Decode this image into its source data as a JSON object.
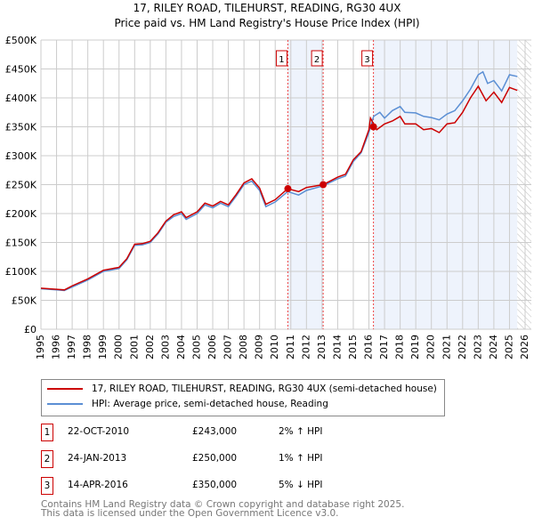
{
  "chart_data": {
    "type": "line",
    "title": "17, RILEY ROAD, TILEHURST, READING, RG30 4UX",
    "subtitle": "Price paid vs. HM Land Registry's House Price Index (HPI)",
    "xlim": [
      1995,
      2026
    ],
    "ylim": [
      0,
      500000
    ],
    "x_ticks": [
      "1995",
      "1996",
      "1997",
      "1998",
      "1999",
      "2000",
      "2001",
      "2002",
      "2003",
      "2004",
      "2005",
      "2006",
      "2007",
      "2008",
      "2009",
      "2010",
      "2011",
      "2012",
      "2013",
      "2014",
      "2015",
      "2016",
      "2017",
      "2018",
      "2019",
      "2020",
      "2021",
      "2022",
      "2023",
      "2024",
      "2025",
      "2026"
    ],
    "y_ticks": [
      "£0",
      "£50K",
      "£100K",
      "£150K",
      "£200K",
      "£250K",
      "£300K",
      "£350K",
      "£400K",
      "£450K",
      "£500K"
    ],
    "grid": true,
    "series": [
      {
        "name": "17, RILEY ROAD, TILEHURST, READING, RG30 4UX (semi-detached house)",
        "color": "#cc0000",
        "x": [
          1995,
          1996,
          1996.5,
          1997,
          1998,
          1999,
          2000,
          2000.5,
          2001,
          2001.5,
          2002,
          2002.5,
          2003,
          2003.5,
          2004,
          2004.3,
          2005,
          2005.5,
          2006,
          2006.5,
          2007,
          2007.5,
          2008,
          2008.5,
          2009,
          2009.4,
          2010,
          2010.8,
          2011.5,
          2012,
          2013.07,
          2014,
          2014.5,
          2015,
          2015.5,
          2016,
          2016.1,
          2016.5,
          2017,
          2017.5,
          2018,
          2018.3,
          2019,
          2019.5,
          2020,
          2020.5,
          2021,
          2021.5,
          2022,
          2022.5,
          2023,
          2023.5,
          2024,
          2024.5,
          2025,
          2025.5
        ],
        "values": [
          71000,
          69000,
          68000,
          75000,
          87000,
          102000,
          107000,
          122000,
          147000,
          148000,
          152000,
          167000,
          187000,
          198000,
          203000,
          193000,
          203000,
          218000,
          213000,
          221000,
          215000,
          233000,
          253000,
          260000,
          244000,
          216000,
          224000,
          243000,
          238000,
          245000,
          250000,
          263000,
          268000,
          293000,
          307000,
          345000,
          365000,
          345000,
          355000,
          360000,
          368000,
          355000,
          355000,
          345000,
          347000,
          340000,
          355000,
          357000,
          375000,
          400000,
          420000,
          395000,
          410000,
          392000,
          418000,
          413000
        ]
      },
      {
        "name": "HPI: Average price, semi-detached house, Reading",
        "color": "#5b8fd4",
        "x": [
          1995,
          1996,
          1996.5,
          1997,
          1998,
          1999,
          2000,
          2000.5,
          2001,
          2001.5,
          2002,
          2002.5,
          2003,
          2003.5,
          2004,
          2004.3,
          2005,
          2005.5,
          2006,
          2006.5,
          2007,
          2007.5,
          2008,
          2008.5,
          2009,
          2009.4,
          2010,
          2010.8,
          2011.5,
          2012,
          2013.07,
          2014,
          2014.5,
          2015,
          2015.5,
          2016,
          2016.3,
          2016.7,
          2017,
          2017.5,
          2018,
          2018.3,
          2019,
          2019.5,
          2020,
          2020.5,
          2021,
          2021.5,
          2022,
          2022.5,
          2023,
          2023.3,
          2023.6,
          2024,
          2024.5,
          2025,
          2025.5
        ],
        "values": [
          70000,
          68000,
          67000,
          73000,
          85000,
          100000,
          105000,
          120000,
          145000,
          146000,
          150000,
          165000,
          185000,
          195000,
          200000,
          190000,
          200000,
          215000,
          210000,
          218000,
          212000,
          230000,
          250000,
          256000,
          240000,
          212000,
          220000,
          238000,
          232000,
          240000,
          248000,
          260000,
          265000,
          290000,
          305000,
          340000,
          368000,
          375000,
          365000,
          378000,
          385000,
          375000,
          374000,
          368000,
          366000,
          362000,
          372000,
          378000,
          395000,
          415000,
          440000,
          445000,
          425000,
          430000,
          412000,
          440000,
          437000
        ]
      }
    ],
    "transactions": [
      {
        "id": "1",
        "date": "22-OCT-2010",
        "x": 2010.81,
        "price": "£243,000",
        "value": 243000,
        "hpi": "2% ↑ HPI"
      },
      {
        "id": "2",
        "date": "24-JAN-2013",
        "x": 2013.07,
        "price": "£250,000",
        "value": 250000,
        "hpi": "1% ↑ HPI"
      },
      {
        "id": "3",
        "date": "14-APR-2016",
        "x": 2016.29,
        "price": "£350,000",
        "value": 350000,
        "hpi": "5% ↓ HPI"
      }
    ],
    "forecast_start": 2025.5,
    "legend_position": "bottom"
  },
  "footer": {
    "line1": "Contains HM Land Registry data © Crown copyright and database right 2025.",
    "line2": "This data is licensed under the Open Government Licence v3.0."
  }
}
